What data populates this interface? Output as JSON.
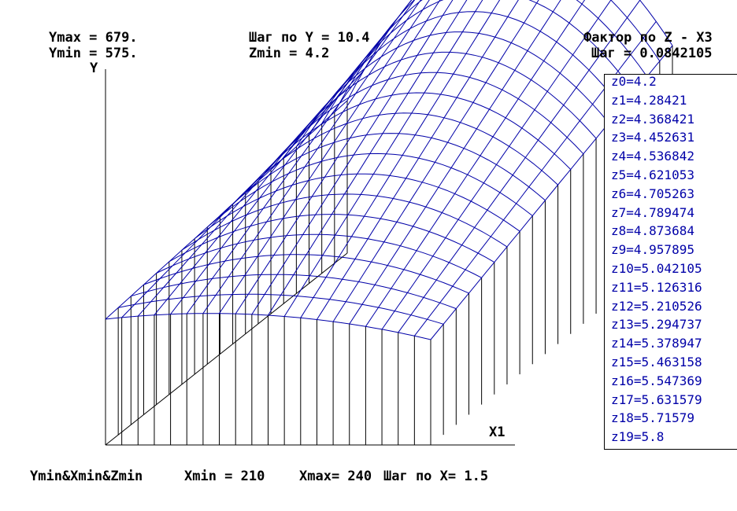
{
  "header": {
    "ymax": "Ymax = 679.",
    "ymin": "Ymin = 575.",
    "step_y": "Шаг по Y = 10.4",
    "zmin": "Zmin = 4.2",
    "factor": "Фактор по Z - X3",
    "step_z": "Шаг = 0.0842105"
  },
  "axes": {
    "y_label": "Y",
    "x_label": "X1"
  },
  "footer": {
    "origin": "Ymin&Xmin&Zmin",
    "xmin": "Xmin = 210",
    "xmax": "Xmax= 240",
    "step_x": "Шаг по X= 1.5"
  },
  "legend": [
    "z0=4.2",
    "z1=4.28421",
    "z2=4.368421",
    "z3=4.452631",
    "z4=4.536842",
    "z5=4.621053",
    "z6=4.705263",
    "z7=4.789474",
    "z8=4.873684",
    "z9=4.957895",
    "z10=5.042105",
    "z11=5.126316",
    "z12=5.210526",
    "z13=5.294737",
    "z14=5.378947",
    "z15=5.463158",
    "z16=5.547369",
    "z17=5.631579",
    "z18=5.71579",
    "z19=5.8"
  ],
  "colors": {
    "mesh": "#0000a8",
    "axes": "#000000",
    "legend_text": "#0000a8",
    "background": "#ffffff"
  }
}
